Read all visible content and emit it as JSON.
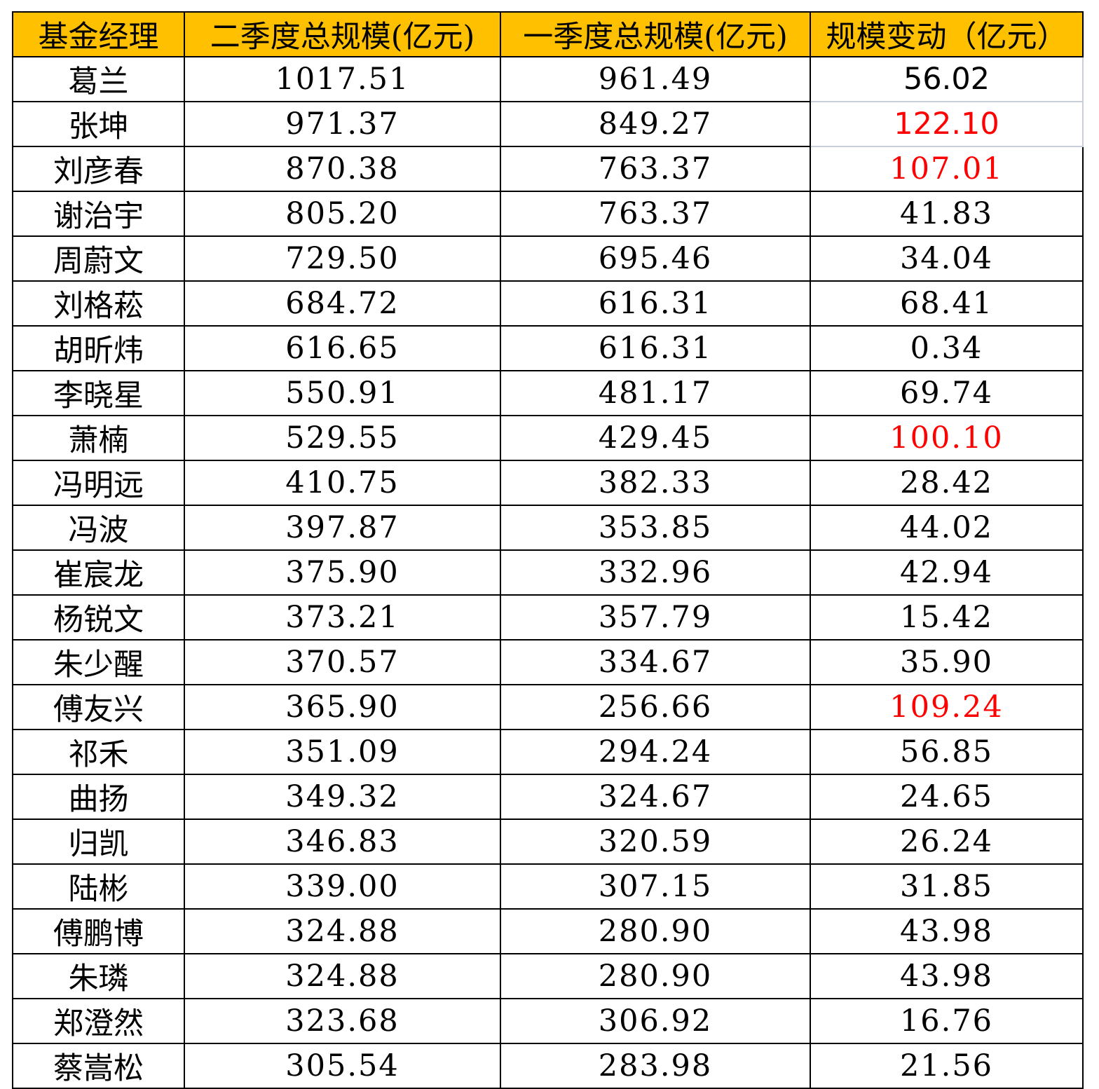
{
  "colors": {
    "header_bg": "#FFC000",
    "highlight_red": "#FF0000",
    "grid_black": "#000000",
    "edited_cell_grid": "#C9CFD9",
    "text": "#000000",
    "page_bg": "#FFFFFF"
  },
  "chart_data": {
    "type": "table",
    "title": "",
    "columns": [
      {
        "key": "manager",
        "label": "基金经理"
      },
      {
        "key": "q2",
        "label": "二季度总规模(亿元)"
      },
      {
        "key": "q1",
        "label": "一季度总规模(亿元)"
      },
      {
        "key": "change",
        "label": "规模变动（亿元）"
      }
    ],
    "rows": [
      {
        "manager": "葛兰",
        "q2": "1017.51",
        "q1": "961.49",
        "change": "56.02",
        "change_color": "black",
        "change_font": "sans",
        "gray_borders": [
          "bottom",
          "right"
        ]
      },
      {
        "manager": "张坤",
        "q2": "971.37",
        "q1": "849.27",
        "change": "122.10",
        "change_color": "red",
        "change_font": "sans",
        "gray_borders": [
          "top",
          "bottom",
          "right"
        ]
      },
      {
        "manager": "刘彦春",
        "q2": "870.38",
        "q1": "763.37",
        "change": "107.01",
        "change_color": "red",
        "change_font": "serif",
        "gray_borders": [
          "top"
        ]
      },
      {
        "manager": "谢治宇",
        "q2": "805.20",
        "q1": "763.37",
        "change": "41.83",
        "change_color": "black",
        "change_font": "serif"
      },
      {
        "manager": "周蔚文",
        "q2": "729.50",
        "q1": "695.46",
        "change": "34.04",
        "change_color": "black",
        "change_font": "serif"
      },
      {
        "manager": "刘格菘",
        "q2": "684.72",
        "q1": "616.31",
        "change": "68.41",
        "change_color": "black",
        "change_font": "serif"
      },
      {
        "manager": "胡昕炜",
        "q2": "616.65",
        "q1": "616.31",
        "change": "0.34",
        "change_color": "black",
        "change_font": "serif"
      },
      {
        "manager": "李晓星",
        "q2": "550.91",
        "q1": "481.17",
        "change": "69.74",
        "change_color": "black",
        "change_font": "serif"
      },
      {
        "manager": "萧楠",
        "q2": "529.55",
        "q1": "429.45",
        "change": "100.10",
        "change_color": "red",
        "change_font": "serif"
      },
      {
        "manager": "冯明远",
        "q2": "410.75",
        "q1": "382.33",
        "change": "28.42",
        "change_color": "black",
        "change_font": "serif"
      },
      {
        "manager": "冯波",
        "q2": "397.87",
        "q1": "353.85",
        "change": "44.02",
        "change_color": "black",
        "change_font": "serif"
      },
      {
        "manager": "崔宸龙",
        "q2": "375.90",
        "q1": "332.96",
        "change": "42.94",
        "change_color": "black",
        "change_font": "serif"
      },
      {
        "manager": "杨锐文",
        "q2": "373.21",
        "q1": "357.79",
        "change": "15.42",
        "change_color": "black",
        "change_font": "serif"
      },
      {
        "manager": "朱少醒",
        "q2": "370.57",
        "q1": "334.67",
        "change": "35.90",
        "change_color": "black",
        "change_font": "serif"
      },
      {
        "manager": "傅友兴",
        "q2": "365.90",
        "q1": "256.66",
        "change": "109.24",
        "change_color": "red",
        "change_font": "serif"
      },
      {
        "manager": "祁禾",
        "q2": "351.09",
        "q1": "294.24",
        "change": "56.85",
        "change_color": "black",
        "change_font": "serif"
      },
      {
        "manager": "曲扬",
        "q2": "349.32",
        "q1": "324.67",
        "change": "24.65",
        "change_color": "black",
        "change_font": "serif"
      },
      {
        "manager": "归凯",
        "q2": "346.83",
        "q1": "320.59",
        "change": "26.24",
        "change_color": "black",
        "change_font": "serif"
      },
      {
        "manager": "陆彬",
        "q2": "339.00",
        "q1": "307.15",
        "change": "31.85",
        "change_color": "black",
        "change_font": "serif"
      },
      {
        "manager": "傅鹏博",
        "q2": "324.88",
        "q1": "280.90",
        "change": "43.98",
        "change_color": "black",
        "change_font": "serif"
      },
      {
        "manager": "朱璘",
        "q2": "324.88",
        "q1": "280.90",
        "change": "43.98",
        "change_color": "black",
        "change_font": "serif"
      },
      {
        "manager": "郑澄然",
        "q2": "323.68",
        "q1": "306.92",
        "change": "16.76",
        "change_color": "black",
        "change_font": "serif"
      },
      {
        "manager": "蔡嵩松",
        "q2": "305.54",
        "q1": "283.98",
        "change": "21.56",
        "change_color": "black",
        "change_font": "serif"
      }
    ]
  }
}
